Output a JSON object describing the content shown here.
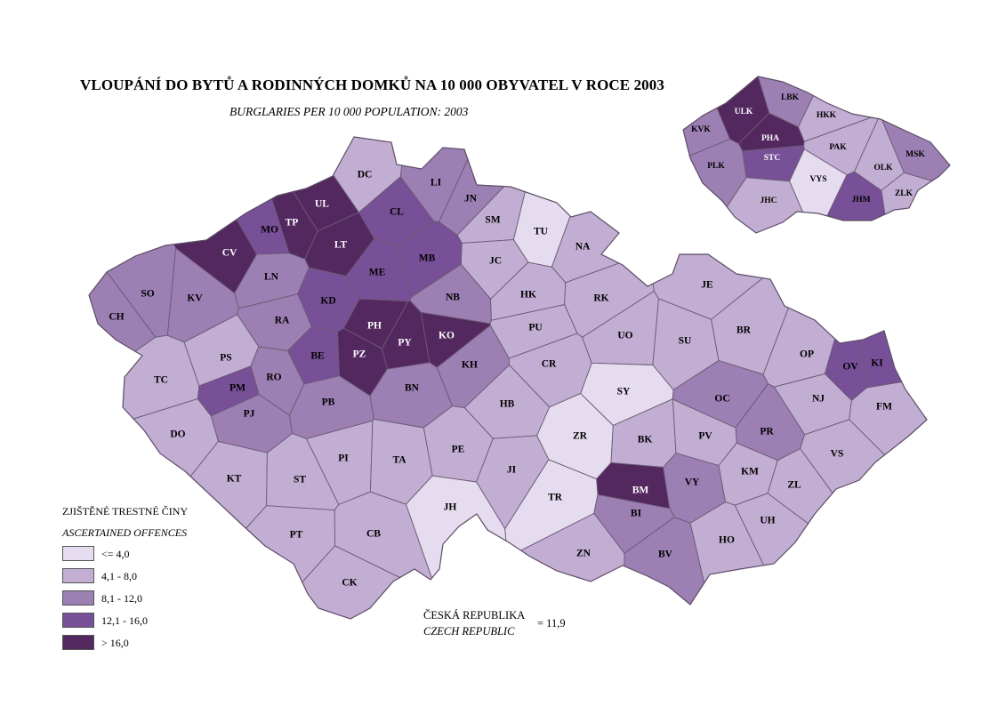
{
  "title": "VLOUPÁNÍ DO BYTŮ A RODINNÝCH DOMKŮ NA 10 000 OBYVATEL V ROCE 2003",
  "subtitle": "BURGLARIES PER 10 000 POPULATION: 2003",
  "colors": {
    "c1": "#e6dcef",
    "c2": "#c2aed3",
    "c3": "#9c7fb3",
    "c4": "#775097",
    "c5": "#53285f"
  },
  "legend": {
    "title": "ZJIŠTĚNÉ TRESTNÉ ČINY",
    "subtitle": "ASCERTAINED OFFENCES",
    "items": [
      {
        "label": "<= 4,0",
        "cls": "c1"
      },
      {
        "label": "4,1 - 8,0",
        "cls": "c2"
      },
      {
        "label": "8,1 - 12,0",
        "cls": "c3"
      },
      {
        "label": "12,1 - 16,0",
        "cls": "c4"
      },
      {
        "label": "> 16,0",
        "cls": "c5"
      }
    ]
  },
  "national": {
    "name_cz": "ČESKÁ REPUBLIKA",
    "name_en": "CZECH REPUBLIC",
    "value": "= 11,9"
  },
  "districts": [
    {
      "code": "DC",
      "cls": "c2"
    },
    {
      "code": "LI",
      "cls": "c3"
    },
    {
      "code": "JN",
      "cls": "c3"
    },
    {
      "code": "UL",
      "cls": "c5"
    },
    {
      "code": "TP",
      "cls": "c5"
    },
    {
      "code": "MO",
      "cls": "c4"
    },
    {
      "code": "CV",
      "cls": "c5"
    },
    {
      "code": "LT",
      "cls": "c5"
    },
    {
      "code": "CL",
      "cls": "c4"
    },
    {
      "code": "SM",
      "cls": "c2"
    },
    {
      "code": "TU",
      "cls": "c1"
    },
    {
      "code": "NA",
      "cls": "c2"
    },
    {
      "code": "JC",
      "cls": "c2"
    },
    {
      "code": "MB",
      "cls": "c4"
    },
    {
      "code": "ME",
      "cls": "c4"
    },
    {
      "code": "LN",
      "cls": "c3"
    },
    {
      "code": "SO",
      "cls": "c3"
    },
    {
      "code": "KV",
      "cls": "c3"
    },
    {
      "code": "CH",
      "cls": "c3"
    },
    {
      "code": "KD",
      "cls": "c4"
    },
    {
      "code": "RA",
      "cls": "c3"
    },
    {
      "code": "NB",
      "cls": "c3"
    },
    {
      "code": "HK",
      "cls": "c2"
    },
    {
      "code": "RK",
      "cls": "c2"
    },
    {
      "code": "PH",
      "cls": "c5"
    },
    {
      "code": "PY",
      "cls": "c5"
    },
    {
      "code": "KO",
      "cls": "c5"
    },
    {
      "code": "PZ",
      "cls": "c5"
    },
    {
      "code": "BE",
      "cls": "c4"
    },
    {
      "code": "PS",
      "cls": "c2"
    },
    {
      "code": "PM",
      "cls": "c4"
    },
    {
      "code": "RO",
      "cls": "c3"
    },
    {
      "code": "TC",
      "cls": "c2"
    },
    {
      "code": "PJ",
      "cls": "c3"
    },
    {
      "code": "PB",
      "cls": "c3"
    },
    {
      "code": "BN",
      "cls": "c3"
    },
    {
      "code": "KH",
      "cls": "c3"
    },
    {
      "code": "PU",
      "cls": "c2"
    },
    {
      "code": "CR",
      "cls": "c2"
    },
    {
      "code": "UO",
      "cls": "c2"
    },
    {
      "code": "JE",
      "cls": "c2"
    },
    {
      "code": "SU",
      "cls": "c2"
    },
    {
      "code": "BR",
      "cls": "c2"
    },
    {
      "code": "OP",
      "cls": "c2"
    },
    {
      "code": "OV",
      "cls": "c4"
    },
    {
      "code": "KI",
      "cls": "c4"
    },
    {
      "code": "NJ",
      "cls": "c2"
    },
    {
      "code": "FM",
      "cls": "c2"
    },
    {
      "code": "OC",
      "cls": "c3"
    },
    {
      "code": "PR",
      "cls": "c3"
    },
    {
      "code": "SY",
      "cls": "c1"
    },
    {
      "code": "HB",
      "cls": "c2"
    },
    {
      "code": "ZR",
      "cls": "c1"
    },
    {
      "code": "BK",
      "cls": "c2"
    },
    {
      "code": "PV",
      "cls": "c2"
    },
    {
      "code": "VS",
      "cls": "c2"
    },
    {
      "code": "DO",
      "cls": "c2"
    },
    {
      "code": "KT",
      "cls": "c2"
    },
    {
      "code": "ST",
      "cls": "c2"
    },
    {
      "code": "PI",
      "cls": "c2"
    },
    {
      "code": "TA",
      "cls": "c2"
    },
    {
      "code": "PE",
      "cls": "c2"
    },
    {
      "code": "JI",
      "cls": "c2"
    },
    {
      "code": "BM",
      "cls": "c5"
    },
    {
      "code": "VY",
      "cls": "c3"
    },
    {
      "code": "KM",
      "cls": "c2"
    },
    {
      "code": "ZL",
      "cls": "c2"
    },
    {
      "code": "JH",
      "cls": "c1"
    },
    {
      "code": "TR",
      "cls": "c1"
    },
    {
      "code": "BI",
      "cls": "c3"
    },
    {
      "code": "UH",
      "cls": "c2"
    },
    {
      "code": "PT",
      "cls": "c2"
    },
    {
      "code": "CB",
      "cls": "c2"
    },
    {
      "code": "ZN",
      "cls": "c2"
    },
    {
      "code": "BV",
      "cls": "c3"
    },
    {
      "code": "HO",
      "cls": "c2"
    },
    {
      "code": "CK",
      "cls": "c2"
    }
  ],
  "regions": [
    {
      "code": "LBK",
      "cls": "c3"
    },
    {
      "code": "ULK",
      "cls": "c5"
    },
    {
      "code": "HKK",
      "cls": "c2"
    },
    {
      "code": "KVK",
      "cls": "c3"
    },
    {
      "code": "PHA",
      "cls": "c5"
    },
    {
      "code": "STC",
      "cls": "c4"
    },
    {
      "code": "PAK",
      "cls": "c2"
    },
    {
      "code": "MSK",
      "cls": "c3"
    },
    {
      "code": "PLK",
      "cls": "c3"
    },
    {
      "code": "OLK",
      "cls": "c2"
    },
    {
      "code": "VYS",
      "cls": "c1"
    },
    {
      "code": "ZLK",
      "cls": "c2"
    },
    {
      "code": "JHC",
      "cls": "c2"
    },
    {
      "code": "JHM",
      "cls": "c4"
    }
  ]
}
